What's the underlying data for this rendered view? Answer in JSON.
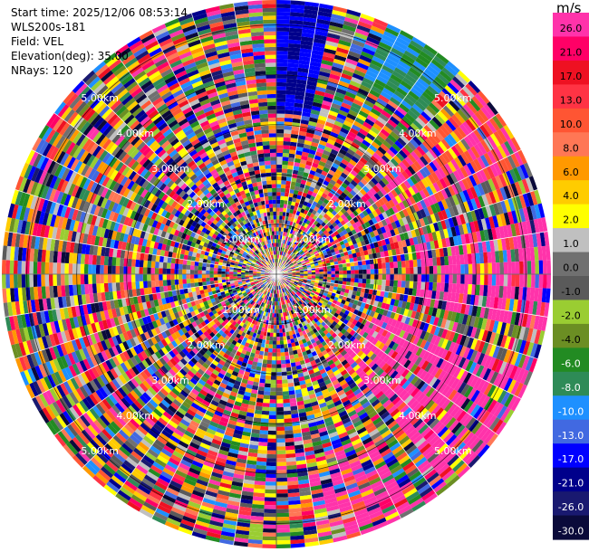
{
  "header": {
    "start_time": "Start time: 2025/12/06 08:53:14",
    "instrument": "WLS200s-181",
    "field": "Field: VEL",
    "elevation": "Elevation(deg): 35.00",
    "nrays": "NRays: 120"
  },
  "colorbar": {
    "unit": "m/s",
    "ticks": [
      "26.0",
      "21.0",
      "17.0",
      "13.0",
      "10.0",
      "8.0",
      "6.0",
      "4.0",
      "2.0",
      "1.0",
      "0.0",
      "-1.0",
      "-2.0",
      "-4.0",
      "-6.0",
      "-8.0",
      "-10.0",
      "-13.0",
      "-17.0",
      "-21.0",
      "-26.0",
      "-30.0"
    ],
    "colors": [
      "#ff33aa",
      "#ff0066",
      "#ee1122",
      "#ff3344",
      "#ff5533",
      "#ff7755",
      "#ff9900",
      "#ffcc00",
      "#ffff00",
      "#c0c0c0",
      "#707070",
      "#5a5a5a",
      "#9acd32",
      "#6b8e23",
      "#228b22",
      "#2e8b57",
      "#1e90ff",
      "#4169e1",
      "#0000ff",
      "#00008b",
      "#191970",
      "#0a0a3a"
    ]
  },
  "range_labels": [
    "1.00km",
    "2.00km",
    "3.00km",
    "4.00km",
    "5.00km"
  ],
  "nrays_value": 120
}
